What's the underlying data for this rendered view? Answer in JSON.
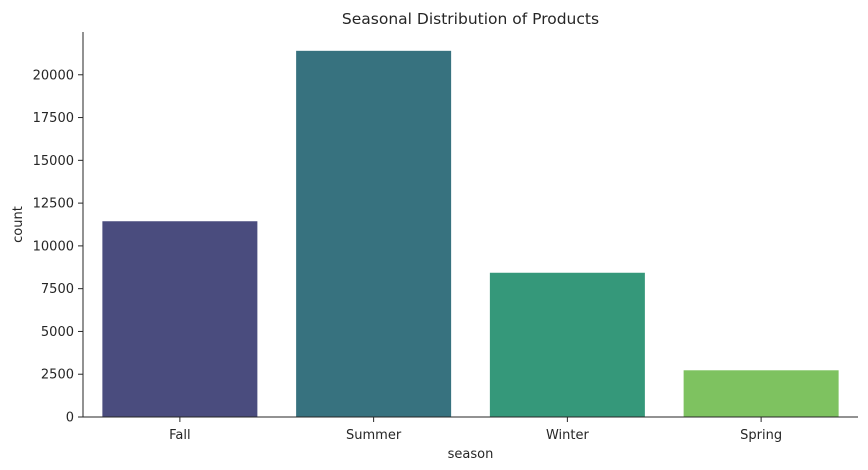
{
  "chart_data": {
    "type": "bar",
    "title": "Seasonal Distribution of Products",
    "xlabel": "season",
    "ylabel": "count",
    "categories": [
      "Fall",
      "Summer",
      "Winter",
      "Spring"
    ],
    "values": [
      11440,
      21400,
      8430,
      2730
    ],
    "ylim": [
      0,
      22500
    ],
    "yticks": [
      0,
      2500,
      5000,
      7500,
      10000,
      12500,
      15000,
      17500,
      20000
    ],
    "grid": false,
    "legend": "none",
    "colors": [
      "#4a4c7e",
      "#37727f",
      "#35987a",
      "#7ec260"
    ]
  }
}
